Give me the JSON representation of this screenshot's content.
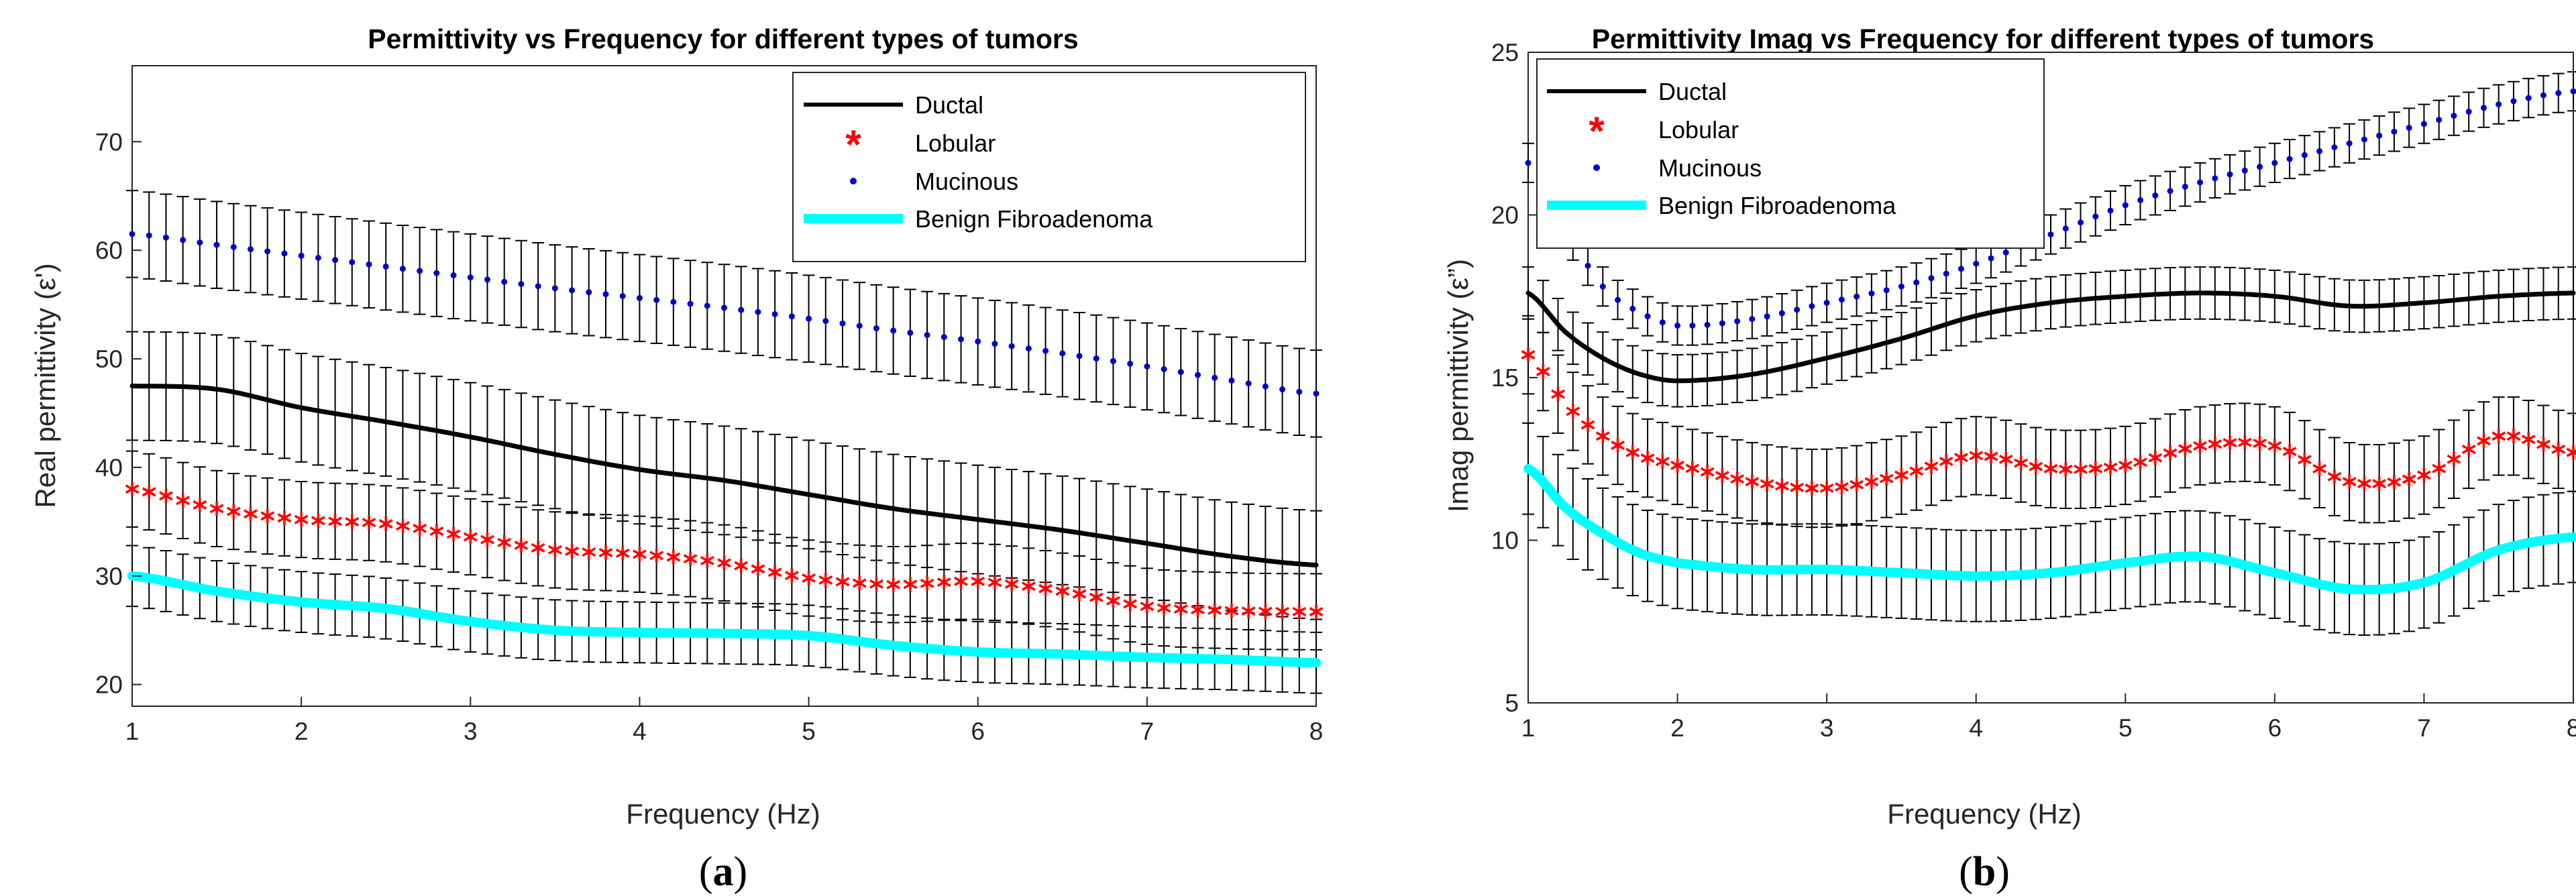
{
  "colors": {
    "ductal": "#000000",
    "lobular": "#ff0000",
    "mucinous": "#0000cd",
    "benign": "#00ffff",
    "errorbar": "#000000",
    "axes": "#262626"
  },
  "chart_data": [
    {
      "type": "line",
      "title": "Permittivity vs Frequency for different types of tumors",
      "xlabel": "Frequency (Hz)",
      "ylabel": "Real permittivity (ε')",
      "xlim": [
        1,
        8
      ],
      "ylim": [
        18,
        77
      ],
      "xticks": [
        "1",
        "2",
        "3",
        "4",
        "5",
        "6",
        "7",
        "8"
      ],
      "yticks": [
        "20",
        "30",
        "40",
        "50",
        "60",
        "70"
      ],
      "legend_position": "top-right",
      "caption": {
        "open": "(",
        "letter": "a",
        "close": ")"
      },
      "x": [
        1,
        1.5,
        2,
        2.5,
        3,
        3.5,
        4,
        4.5,
        5,
        5.5,
        6,
        6.5,
        7,
        7.5,
        8
      ],
      "series": [
        {
          "name": "Ductal",
          "style": "line",
          "values": [
            47.5,
            47.2,
            45.5,
            44.2,
            42.8,
            41.2,
            39.8,
            38.8,
            37.5,
            36.2,
            35.2,
            34.2,
            33.0,
            31.8,
            31.0
          ],
          "error": [
            5.0,
            5.0,
            5.0,
            5.0,
            5.0,
            5.0,
            5.0,
            5.0,
            5.0,
            5.0,
            5.0,
            5.0,
            5.0,
            5.0,
            5.0
          ]
        },
        {
          "name": "Lobular",
          "style": "asterisk",
          "values": [
            38.0,
            36.2,
            35.2,
            34.8,
            33.6,
            32.4,
            32.0,
            31.2,
            29.8,
            29.2,
            29.5,
            28.6,
            27.2,
            26.8,
            26.7
          ],
          "error": [
            3.5,
            3.5,
            3.5,
            3.5,
            3.5,
            3.5,
            3.5,
            3.5,
            3.5,
            3.5,
            3.5,
            3.5,
            3.5,
            3.5,
            3.5
          ]
        },
        {
          "name": "Mucinous",
          "style": "dot",
          "values": [
            61.5,
            60.5,
            59.5,
            58.5,
            57.5,
            56.5,
            55.6,
            54.7,
            53.7,
            52.6,
            51.6,
            50.5,
            49.3,
            48.0,
            46.8
          ],
          "error": [
            4.0,
            4.0,
            4.0,
            4.0,
            4.0,
            4.0,
            4.0,
            4.0,
            4.0,
            4.0,
            4.0,
            4.0,
            4.0,
            4.0,
            4.0
          ]
        },
        {
          "name": "Benign Fibroadenoma",
          "style": "thick",
          "values": [
            30.0,
            28.6,
            27.6,
            27.0,
            25.8,
            25.0,
            24.8,
            24.7,
            24.5,
            23.6,
            23.0,
            22.8,
            22.5,
            22.3,
            22.0
          ],
          "error": [
            2.8,
            2.8,
            2.8,
            2.8,
            2.8,
            2.8,
            2.8,
            2.8,
            2.8,
            2.8,
            2.8,
            2.8,
            2.8,
            2.8,
            2.8
          ]
        }
      ]
    },
    {
      "type": "line",
      "title": "Permittivity Imag vs Frequency for different types of tumors",
      "xlabel": "Frequency (Hz)",
      "ylabel": "Imag permittivity (ε”)",
      "xlim": [
        1,
        8
      ],
      "ylim": [
        5,
        25
      ],
      "xticks": [
        "1",
        "2",
        "3",
        "4",
        "5",
        "6",
        "7",
        "8"
      ],
      "yticks": [
        "5",
        "10",
        "15",
        "20",
        "25"
      ],
      "legend_position": "top-left",
      "caption": {
        "open": "(",
        "letter": "b",
        "close": ")"
      },
      "x": [
        1,
        1.25,
        1.5,
        1.75,
        2,
        2.5,
        3,
        3.5,
        4,
        4.5,
        5,
        5.5,
        6,
        6.5,
        7,
        7.5,
        8
      ],
      "series": [
        {
          "name": "Ductal",
          "style": "line",
          "values": [
            17.6,
            16.4,
            15.6,
            15.1,
            14.9,
            15.1,
            15.6,
            16.2,
            16.9,
            17.3,
            17.5,
            17.6,
            17.5,
            17.2,
            17.3,
            17.5,
            17.6
          ],
          "error": [
            0.8,
            0.8,
            0.8,
            0.8,
            0.8,
            0.8,
            0.8,
            0.8,
            0.8,
            0.8,
            0.8,
            0.8,
            0.8,
            0.8,
            0.8,
            0.8,
            0.8
          ]
        },
        {
          "name": "Lobular",
          "style": "asterisk",
          "values": [
            15.7,
            14.2,
            13.2,
            12.6,
            12.3,
            11.8,
            11.6,
            12.0,
            12.6,
            12.2,
            12.3,
            12.9,
            12.9,
            11.8,
            12.0,
            13.2,
            12.7
          ],
          "error": [
            1.2,
            1.2,
            1.2,
            1.2,
            1.2,
            1.2,
            1.2,
            1.2,
            1.2,
            1.2,
            1.2,
            1.2,
            1.2,
            1.2,
            1.2,
            1.2,
            1.2
          ]
        },
        {
          "name": "Mucinous",
          "style": "dot",
          "values": [
            21.6,
            19.6,
            17.8,
            17.0,
            16.6,
            16.8,
            17.3,
            17.8,
            18.5,
            19.4,
            20.3,
            21.0,
            21.6,
            22.2,
            22.8,
            23.4,
            23.8
          ],
          "error": [
            0.6,
            0.6,
            0.6,
            0.6,
            0.6,
            0.6,
            0.6,
            0.6,
            0.6,
            0.6,
            0.6,
            0.6,
            0.6,
            0.6,
            0.6,
            0.6,
            0.6
          ]
        },
        {
          "name": "Benign Fibroadenoma",
          "style": "thick",
          "values": [
            12.2,
            11.0,
            10.2,
            9.6,
            9.3,
            9.1,
            9.1,
            9.0,
            8.9,
            9.0,
            9.3,
            9.5,
            9.0,
            8.5,
            8.7,
            9.7,
            10.1
          ],
          "error": [
            1.4,
            1.4,
            1.4,
            1.4,
            1.4,
            1.4,
            1.4,
            1.4,
            1.4,
            1.4,
            1.4,
            1.4,
            1.4,
            1.4,
            1.4,
            1.4,
            1.4
          ]
        }
      ]
    }
  ]
}
